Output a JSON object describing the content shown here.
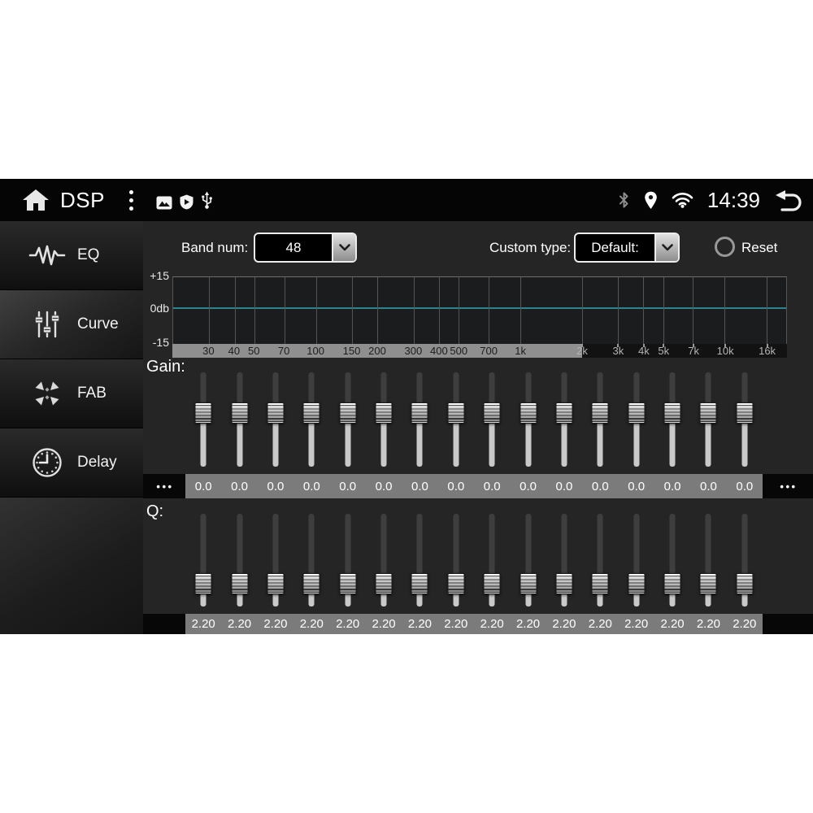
{
  "status_bar": {
    "app_title": "DSP",
    "time": "14:39",
    "left_icons": [
      "home-icon",
      "overflow-menu-icon",
      "image-icon",
      "shield-play-icon",
      "usb-icon"
    ],
    "right_icons": [
      "bluetooth-icon",
      "location-icon",
      "wifi-icon",
      "back-icon"
    ]
  },
  "sidebar": {
    "items": [
      {
        "label": "EQ",
        "icon": "eq-waveform-icon",
        "selected": false
      },
      {
        "label": "Curve",
        "icon": "curve-sliders-icon",
        "selected": true
      },
      {
        "label": "FAB",
        "icon": "fab-arrows-icon",
        "selected": false
      },
      {
        "label": "Delay",
        "icon": "delay-clock-icon",
        "selected": false
      }
    ]
  },
  "controls": {
    "band_num_label": "Band num:",
    "band_num_value": "48",
    "custom_type_label": "Custom type:",
    "custom_type_value": "Default:",
    "reset_label": "Reset"
  },
  "graph": {
    "y_labels": [
      "+15",
      "0db",
      "-15"
    ],
    "curve_db_value": 0,
    "axis_min_hz": 20,
    "axis_max_hz": 20000,
    "split_hz": 2000,
    "zero_line_color": "#2e8391",
    "freq_ticks": [
      {
        "label": "30",
        "hz": 30
      },
      {
        "label": "40",
        "hz": 40
      },
      {
        "label": "50",
        "hz": 50
      },
      {
        "label": "70",
        "hz": 70
      },
      {
        "label": "100",
        "hz": 100
      },
      {
        "label": "150",
        "hz": 150
      },
      {
        "label": "200",
        "hz": 200
      },
      {
        "label": "300",
        "hz": 300
      },
      {
        "label": "400",
        "hz": 400
      },
      {
        "label": "500",
        "hz": 500
      },
      {
        "label": "700",
        "hz": 700
      },
      {
        "label": "1k",
        "hz": 1000
      },
      {
        "label": "2k",
        "hz": 2000
      },
      {
        "label": "3k",
        "hz": 3000
      },
      {
        "label": "4k",
        "hz": 4000
      },
      {
        "label": "5k",
        "hz": 5000
      },
      {
        "label": "7k",
        "hz": 7000
      },
      {
        "label": "10k",
        "hz": 10000
      },
      {
        "label": "16k",
        "hz": 16000
      }
    ]
  },
  "gain": {
    "label": "Gain:",
    "edge_dots": "•••",
    "values": [
      "0.0",
      "0.0",
      "0.0",
      "0.0",
      "0.0",
      "0.0",
      "0.0",
      "0.0",
      "0.0",
      "0.0",
      "0.0",
      "0.0",
      "0.0",
      "0.0",
      "0.0",
      "0.0"
    ]
  },
  "q": {
    "label": "Q:",
    "edge_dots": "",
    "values": [
      "2.20",
      "2.20",
      "2.20",
      "2.20",
      "2.20",
      "2.20",
      "2.20",
      "2.20",
      "2.20",
      "2.20",
      "2.20",
      "2.20",
      "2.20",
      "2.20",
      "2.20",
      "2.20"
    ]
  }
}
